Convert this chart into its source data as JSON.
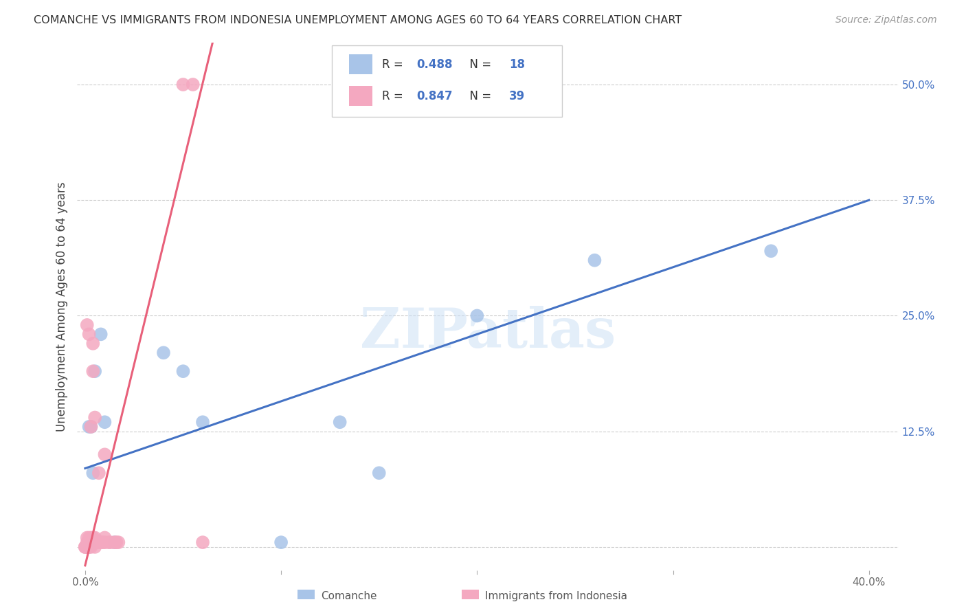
{
  "title": "COMANCHE VS IMMIGRANTS FROM INDONESIA UNEMPLOYMENT AMONG AGES 60 TO 64 YEARS CORRELATION CHART",
  "source": "Source: ZipAtlas.com",
  "ylabel_label": "Unemployment Among Ages 60 to 64 years",
  "xmin": -0.004,
  "xmax": 0.415,
  "ymin": -0.025,
  "ymax": 0.545,
  "comanche_color": "#a8c4e8",
  "indonesia_color": "#f4a8c0",
  "comanche_line_color": "#4472c4",
  "indonesia_line_color": "#e8607a",
  "comanche_R": 0.488,
  "comanche_N": 18,
  "indonesia_R": 0.847,
  "indonesia_N": 39,
  "legend_label_1": "Comanche",
  "legend_label_2": "Immigrants from Indonesia",
  "watermark": "ZIPatlas",
  "xlabel_tick_vals": [
    0.0,
    0.1,
    0.2,
    0.3,
    0.4
  ],
  "xlabel_ticks": [
    "0.0%",
    "",
    "",
    "",
    "40.0%"
  ],
  "ylabel_tick_vals": [
    0.0,
    0.125,
    0.25,
    0.375,
    0.5
  ],
  "ylabel_ticks": [
    "",
    "12.5%",
    "25.0%",
    "37.5%",
    "50.0%"
  ],
  "comanche_x": [
    0.001,
    0.002,
    0.002,
    0.003,
    0.004,
    0.005,
    0.008,
    0.01,
    0.015,
    0.04,
    0.05,
    0.06,
    0.1,
    0.13,
    0.15,
    0.2,
    0.26,
    0.35
  ],
  "comanche_y": [
    0.0,
    0.0,
    0.13,
    0.13,
    0.08,
    0.19,
    0.23,
    0.135,
    0.005,
    0.21,
    0.19,
    0.135,
    0.005,
    0.135,
    0.08,
    0.25,
    0.31,
    0.32
  ],
  "indonesia_x": [
    0.0,
    0.0,
    0.0,
    0.001,
    0.001,
    0.001,
    0.001,
    0.002,
    0.002,
    0.002,
    0.002,
    0.003,
    0.003,
    0.003,
    0.003,
    0.004,
    0.004,
    0.004,
    0.004,
    0.005,
    0.005,
    0.005,
    0.005,
    0.006,
    0.007,
    0.007,
    0.008,
    0.009,
    0.01,
    0.01,
    0.01,
    0.012,
    0.013,
    0.015,
    0.016,
    0.017,
    0.05,
    0.055,
    0.06
  ],
  "indonesia_y": [
    0.0,
    0.0,
    0.0,
    0.0,
    0.005,
    0.01,
    0.24,
    0.0,
    0.005,
    0.01,
    0.23,
    0.0,
    0.005,
    0.01,
    0.13,
    0.005,
    0.01,
    0.19,
    0.22,
    0.0,
    0.005,
    0.01,
    0.14,
    0.005,
    0.005,
    0.08,
    0.005,
    0.005,
    0.005,
    0.01,
    0.1,
    0.005,
    0.005,
    0.005,
    0.005,
    0.005,
    0.5,
    0.5,
    0.005
  ],
  "comanche_line_x": [
    0.0,
    0.4
  ],
  "comanche_line_y": [
    0.085,
    0.375
  ],
  "indonesia_line_x": [
    0.0,
    0.065
  ],
  "indonesia_line_y": [
    -0.02,
    0.545
  ]
}
